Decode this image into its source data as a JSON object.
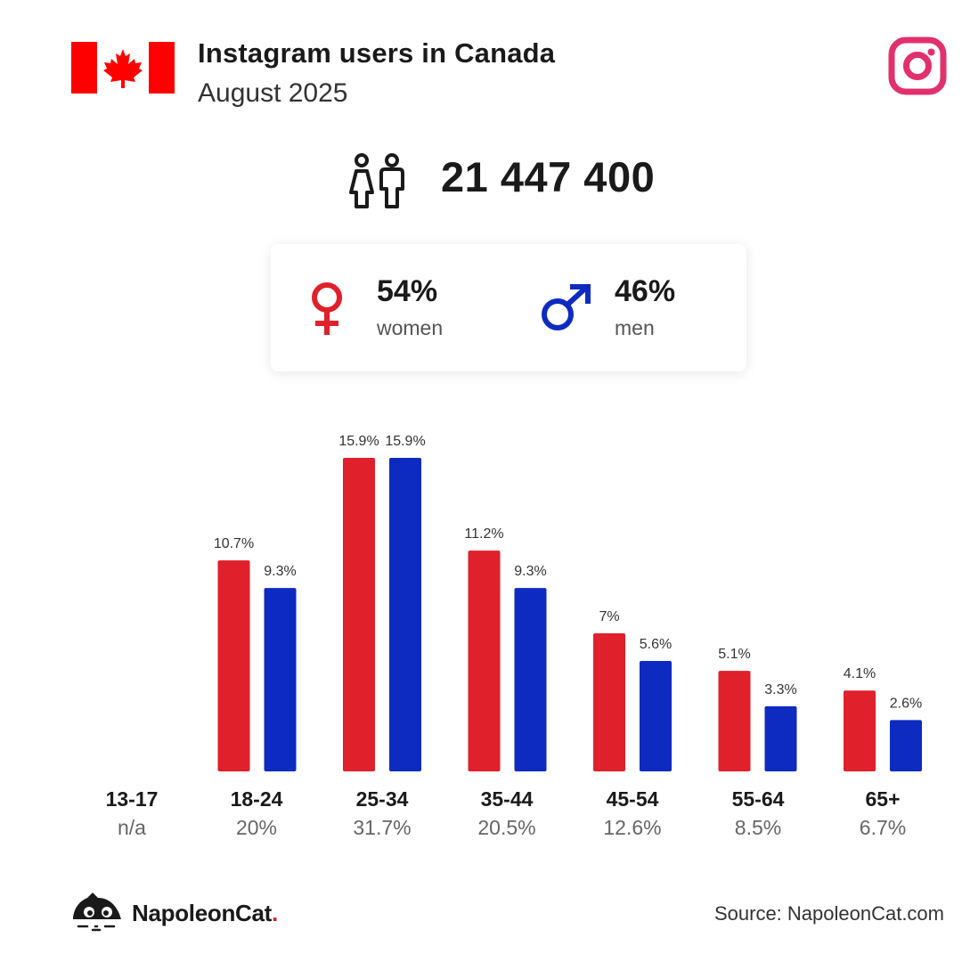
{
  "header": {
    "title": "Instagram users in Canada",
    "subtitle": "August 2025"
  },
  "total_users": "21 447 400",
  "gender": {
    "women": {
      "pct": "54%",
      "label": "women"
    },
    "men": {
      "pct": "46%",
      "label": "men"
    }
  },
  "colors": {
    "women": "#e0202a",
    "men": "#0e2bc1",
    "instagram": "#e1306c",
    "flag_red": "#ff0000"
  },
  "chart_data": {
    "type": "bar",
    "categories": [
      "13-17",
      "18-24",
      "25-34",
      "35-44",
      "45-54",
      "55-64",
      "65+"
    ],
    "category_totals": [
      "n/a",
      "20%",
      "31.7%",
      "20.5%",
      "12.6%",
      "8.5%",
      "6.7%"
    ],
    "series": [
      {
        "name": "women",
        "values": [
          null,
          10.7,
          15.9,
          11.2,
          7,
          5.1,
          4.1
        ],
        "labels": [
          "",
          "10.7%",
          "15.9%",
          "11.2%",
          "7%",
          "5.1%",
          "4.1%"
        ]
      },
      {
        "name": "men",
        "values": [
          null,
          9.3,
          15.9,
          9.3,
          5.6,
          3.3,
          2.6
        ],
        "labels": [
          "",
          "9.3%",
          "15.9%",
          "9.3%",
          "5.6%",
          "3.3%",
          "2.6%"
        ]
      }
    ],
    "ylim": [
      0,
      15.9
    ],
    "grid": false,
    "xlabel": "",
    "ylabel": ""
  },
  "footer": {
    "brand": "NapoleonCat",
    "brand_dot": ".",
    "source": "Source: NapoleonCat.com"
  }
}
